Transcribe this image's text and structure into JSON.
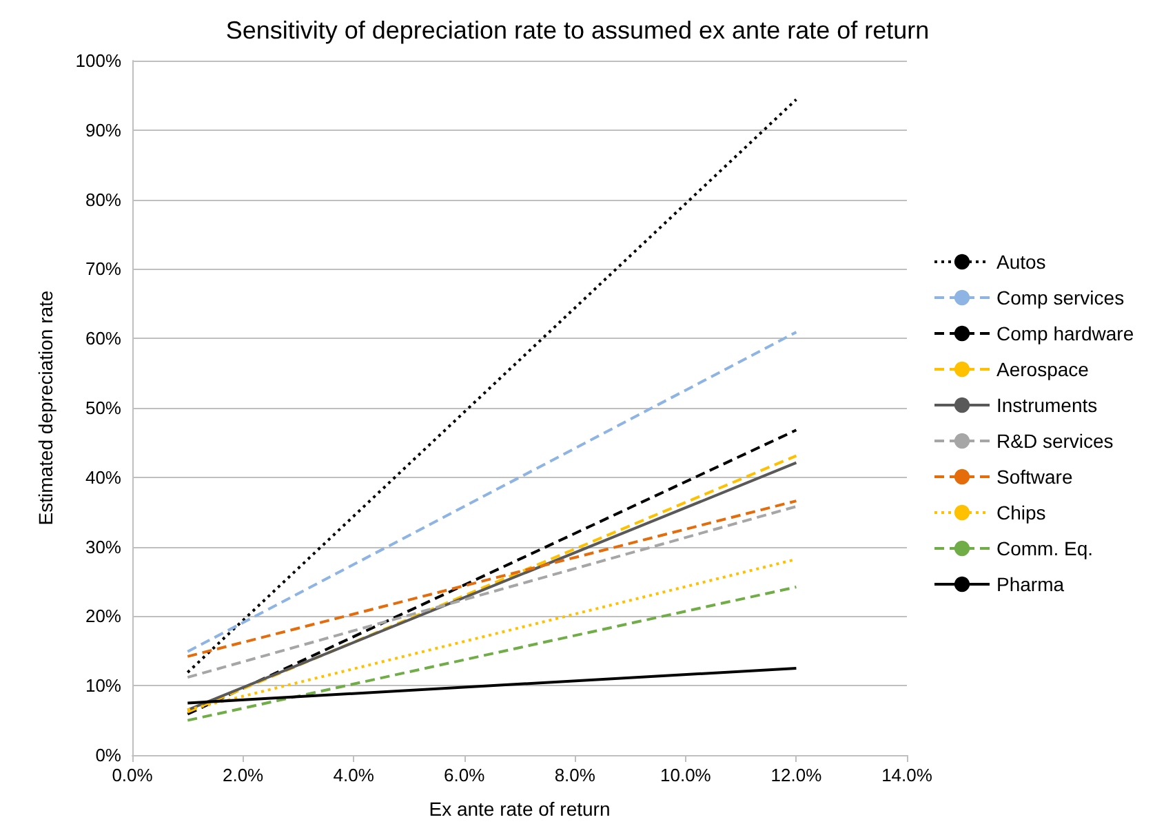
{
  "chart_data": {
    "type": "line",
    "title": "Sensitivity of depreciation rate to assumed ex ante rate of return",
    "xlabel": "Ex ante rate of return",
    "ylabel": "Estimated depreciation rate",
    "x": [
      1,
      12
    ],
    "series": [
      {
        "name": "Autos",
        "color": "#000000",
        "line_style": "dotted",
        "values": [
          11.9,
          94.4
        ]
      },
      {
        "name": "Comp services",
        "color": "#8eb4e3",
        "line_style": "dashed",
        "values": [
          14.9,
          60.9
        ]
      },
      {
        "name": "Comp hardware",
        "color": "#000000",
        "line_style": "dashed",
        "values": [
          5.9,
          46.8
        ]
      },
      {
        "name": "Aerospace",
        "color": "#ffc000",
        "line_style": "dashed",
        "values": [
          6.2,
          43.1
        ]
      },
      {
        "name": "Instruments",
        "color": "#595959",
        "line_style": "solid",
        "values": [
          6.5,
          42.1
        ]
      },
      {
        "name": "R&D services",
        "color": "#a6a6a6",
        "line_style": "dashed",
        "values": [
          11.2,
          35.8
        ]
      },
      {
        "name": "Software",
        "color": "#e46c0a",
        "line_style": "dashed",
        "values": [
          14.2,
          36.6
        ]
      },
      {
        "name": "Chips",
        "color": "#ffc000",
        "line_style": "dotted",
        "values": [
          6.5,
          28.2
        ]
      },
      {
        "name": "Comm. Eq.",
        "color": "#70ad47",
        "line_style": "dashed",
        "values": [
          5.0,
          24.2
        ]
      },
      {
        "name": "Pharma",
        "color": "#000000",
        "line_style": "solid",
        "values": [
          7.5,
          12.5
        ]
      }
    ],
    "xlim": [
      0,
      14
    ],
    "xticks": [
      {
        "value": 0,
        "label": "0.0%"
      },
      {
        "value": 2,
        "label": "2.0%"
      },
      {
        "value": 4,
        "label": "4.0%"
      },
      {
        "value": 6,
        "label": "6.0%"
      },
      {
        "value": 8,
        "label": "8.0%"
      },
      {
        "value": 10,
        "label": "10.0%"
      },
      {
        "value": 12,
        "label": "12.0%"
      },
      {
        "value": 14,
        "label": "14.0%"
      }
    ],
    "ylim": [
      0,
      100
    ],
    "yticks": [
      {
        "value": 0,
        "label": "0%"
      },
      {
        "value": 10,
        "label": "10%"
      },
      {
        "value": 20,
        "label": "20%"
      },
      {
        "value": 30,
        "label": "30%"
      },
      {
        "value": 40,
        "label": "40%"
      },
      {
        "value": 50,
        "label": "50%"
      },
      {
        "value": 60,
        "label": "60%"
      },
      {
        "value": 70,
        "label": "70%"
      },
      {
        "value": 80,
        "label": "80%"
      },
      {
        "value": 90,
        "label": "90%"
      },
      {
        "value": 100,
        "label": "100%"
      }
    ],
    "grid": "y",
    "legend": "right",
    "marker": "none"
  }
}
